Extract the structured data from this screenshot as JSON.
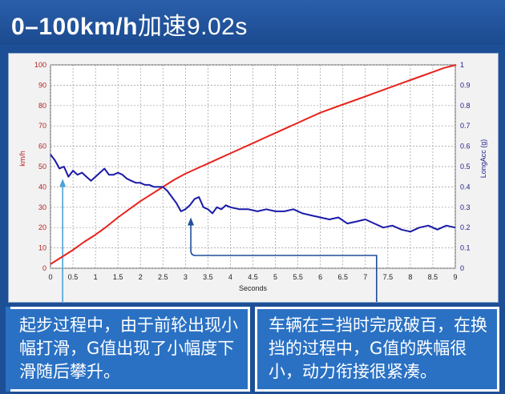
{
  "title": {
    "main": "0–100km/h",
    "suffix": "加速9.02s"
  },
  "notes": {
    "left": "起步过程中，由于前轮出现小幅打滑，G值出现了小幅度下滑随后攀升。",
    "right": "车辆在三挡时完成破百，在换挡的过程中，G值的跌幅很小，动力衔接很紧凑。"
  },
  "colors": {
    "speed": "#e8221c",
    "acc": "#1a1aa8",
    "annotation_arrow": "#4aa3d8",
    "axis_left": "#b22222",
    "axis_right": "#22228a"
  },
  "chart_data": {
    "type": "line",
    "xlabel": "Seconds",
    "ylabel_left": "km/h",
    "ylabel_right": "LongAcc (g)",
    "xlim": [
      0,
      9
    ],
    "ylim_left": [
      0,
      100
    ],
    "ylim_right": [
      0,
      1
    ],
    "x_ticks": [
      "0",
      "0.5",
      "1",
      "1.5",
      "2",
      "2.5",
      "3",
      "3.5",
      "4",
      "4.5",
      "5",
      "5.5",
      "6",
      "6.5",
      "7",
      "7.5",
      "8",
      "8.5",
      "9"
    ],
    "y_ticks_left": [
      "0",
      "10",
      "20",
      "30",
      "40",
      "50",
      "60",
      "70",
      "80",
      "90",
      "100"
    ],
    "y_ticks_right": [
      "0",
      "0.1",
      "0.2",
      "0.3",
      "0.4",
      "0.5",
      "0.6",
      "0.7",
      "0.8",
      "0.9",
      "1"
    ],
    "grid": true,
    "series": [
      {
        "axis": "left",
        "x": [
          0,
          0.25,
          0.5,
          0.75,
          1,
          1.25,
          1.5,
          1.75,
          2,
          2.25,
          2.5,
          2.75,
          3,
          3.25,
          3.5,
          3.75,
          4,
          4.25,
          4.5,
          4.75,
          5,
          5.25,
          5.5,
          5.75,
          6,
          6.25,
          6.5,
          6.75,
          7,
          7.25,
          7.5,
          7.75,
          8,
          8.25,
          8.5,
          8.75,
          9.02
        ],
        "values": [
          2,
          5.5,
          9,
          13,
          16.5,
          20.5,
          25,
          29,
          33,
          36.5,
          40,
          43.5,
          46.5,
          49,
          51.5,
          54,
          56.5,
          59,
          61.5,
          64,
          66.5,
          69,
          71.5,
          74,
          76.5,
          78.5,
          80.5,
          82.5,
          84.5,
          86.5,
          88.5,
          90.5,
          92.5,
          94.5,
          96.5,
          98.5,
          100
        ]
      },
      {
        "axis": "right",
        "x": [
          0,
          0.1,
          0.2,
          0.3,
          0.4,
          0.5,
          0.6,
          0.7,
          0.8,
          0.9,
          1,
          1.1,
          1.2,
          1.3,
          1.4,
          1.5,
          1.6,
          1.7,
          1.8,
          1.9,
          2,
          2.1,
          2.2,
          2.3,
          2.4,
          2.5,
          2.6,
          2.7,
          2.8,
          2.9,
          3,
          3.1,
          3.2,
          3.3,
          3.4,
          3.5,
          3.6,
          3.7,
          3.8,
          3.9,
          4,
          4.2,
          4.4,
          4.6,
          4.8,
          5,
          5.2,
          5.4,
          5.6,
          5.8,
          6,
          6.2,
          6.4,
          6.6,
          6.8,
          7,
          7.2,
          7.4,
          7.6,
          7.8,
          8,
          8.2,
          8.4,
          8.6,
          8.8,
          9
        ],
        "values": [
          0.56,
          0.53,
          0.49,
          0.5,
          0.45,
          0.48,
          0.46,
          0.47,
          0.45,
          0.43,
          0.45,
          0.47,
          0.49,
          0.46,
          0.46,
          0.47,
          0.46,
          0.44,
          0.43,
          0.42,
          0.42,
          0.41,
          0.41,
          0.4,
          0.4,
          0.4,
          0.38,
          0.35,
          0.32,
          0.28,
          0.29,
          0.31,
          0.34,
          0.35,
          0.3,
          0.29,
          0.27,
          0.3,
          0.29,
          0.31,
          0.3,
          0.29,
          0.29,
          0.28,
          0.29,
          0.28,
          0.28,
          0.29,
          0.27,
          0.26,
          0.25,
          0.24,
          0.25,
          0.22,
          0.23,
          0.24,
          0.22,
          0.2,
          0.21,
          0.19,
          0.18,
          0.2,
          0.21,
          0.19,
          0.21,
          0.2
        ]
      }
    ]
  }
}
